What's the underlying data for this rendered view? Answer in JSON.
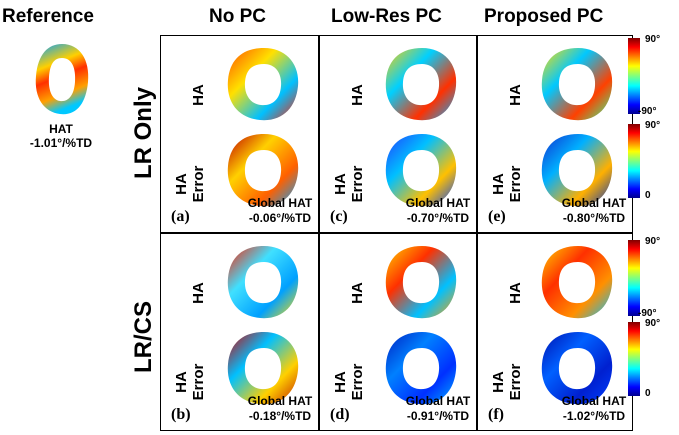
{
  "headers": {
    "reference": "Reference",
    "no_pc": "No PC",
    "low_res_pc": "Low-Res PC",
    "proposed_pc": "Proposed PC"
  },
  "reference": {
    "label": "HAT",
    "value": "-1.01°/%TD"
  },
  "rows": [
    {
      "label": "LR Only"
    },
    {
      "label": "LR/CS"
    }
  ],
  "map_labels": {
    "ha": "HA",
    "ha_error_line1": "HA",
    "ha_error_line2": "Error"
  },
  "global_hat_label": "Global HAT",
  "panels": [
    {
      "letter": "(a)",
      "value": "-0.06°/%TD",
      "style": "nopc_lr"
    },
    {
      "letter": "(c)",
      "value": "-0.70°/%TD",
      "style": "lowres_lr"
    },
    {
      "letter": "(e)",
      "value": "-0.80°/%TD",
      "style": "prop_lr"
    },
    {
      "letter": "(b)",
      "value": "-0.18°/%TD",
      "style": "nopc_cs"
    },
    {
      "letter": "(d)",
      "value": "-0.91°/%TD",
      "style": "lowres_cs"
    },
    {
      "letter": "(f)",
      "value": "-1.02°/%TD",
      "style": "prop_cs"
    }
  ],
  "colorbars": {
    "ha": {
      "max": "90°",
      "min": "-90°"
    },
    "error": {
      "max": "90°",
      "min": "0"
    }
  },
  "colors": {
    "dark_blue": "#00008f",
    "cyan": "#00ffff",
    "yellow": "#ffff00",
    "dark_red": "#800000"
  }
}
